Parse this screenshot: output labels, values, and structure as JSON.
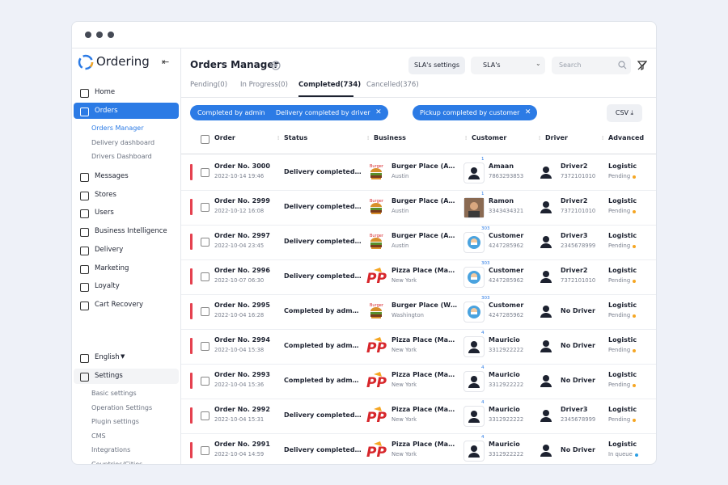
{
  "sidebar": {
    "brand": "Ordering",
    "top_items": [
      "Home",
      "Orders"
    ],
    "orders_sub": [
      "Orders Manager",
      "Delivery dashboard",
      "Drivers Dashboard"
    ],
    "items": [
      "Messages",
      "Stores",
      "Users",
      "Business Intelligence",
      "Delivery",
      "Marketing",
      "Loyalty",
      "Cart Recovery"
    ],
    "language": "English",
    "settings": "Settings",
    "settings_sub": [
      "Basic settings",
      "Operation Settings",
      "Plugin settings",
      "CMS",
      "Integrations",
      "Countries/Cities"
    ]
  },
  "header": {
    "title": "Orders Manager",
    "sla_settings": "SLA's settings",
    "sla_select": "SLA's",
    "search": "Search"
  },
  "tabs": [
    "Pending(0)",
    "In Progress(0)",
    "Completed(734)",
    "Cancelled(376)"
  ],
  "filters": [
    "Completed by admin",
    "Delivery completed by driver",
    "Pickup completed by customer"
  ],
  "csv": "CSV",
  "table": {
    "columns": [
      "Order",
      "Status",
      "Business",
      "Customer",
      "Driver",
      "Advanced"
    ],
    "rows": [
      [
        "Order No. 3000",
        "2022-10-14 19:46",
        "Delivery completed…",
        "Burger Place (A…",
        "Austin",
        "1",
        "Amaan",
        "7863293853",
        "Driver2",
        "7372101010",
        "Logistic",
        "Pending"
      ],
      [
        "Order No. 2999",
        "2022-10-12 16:08",
        "Delivery completed…",
        "Burger Place (A…",
        "Austin",
        "1",
        "Ramon",
        "3343434321",
        "Driver2",
        "7372101010",
        "Logistic",
        "Pending"
      ],
      [
        "Order No. 2997",
        "2022-10-04 23:45",
        "Delivery completed…",
        "Burger Place (A…",
        "Austin",
        "303",
        "Customer",
        "4247285962",
        "Driver3",
        "2345678999",
        "Logistic",
        "Pending"
      ],
      [
        "Order No. 2996",
        "2022-10-07 06:30",
        "Delivery completed…",
        "Pizza Place (Ma…",
        "New York",
        "303",
        "Customer",
        "4247285962",
        "Driver2",
        "7372101010",
        "Logistic",
        "Pending"
      ],
      [
        "Order No. 2995",
        "2022-10-04 16:28",
        "Completed by adm…",
        "Burger Place (W…",
        "Washington",
        "303",
        "Customer",
        "4247285962",
        "No Driver",
        null,
        "Logistic",
        "Pending"
      ],
      [
        "Order No. 2994",
        "2022-10-04 15:38",
        "Completed by adm…",
        "Pizza Place (Ma…",
        "New York",
        "4",
        "Mauricio",
        "3312922222",
        "No Driver",
        null,
        "Logistic",
        "Pending"
      ],
      [
        "Order No. 2993",
        "2022-10-04 15:36",
        "Completed by adm…",
        "Pizza Place (Ma…",
        "New York",
        "4",
        "Mauricio",
        "3312922222",
        "No Driver",
        null,
        "Logistic",
        "Pending"
      ],
      [
        "Order No. 2992",
        "2022-10-04 15:31",
        "Delivery completed…",
        "Pizza Place (Ma…",
        "New York",
        "4",
        "Mauricio",
        "3312922222",
        "Driver3",
        "2345678999",
        "Logistic",
        "Pending"
      ],
      [
        "Order No. 2991",
        "2022-10-04 14:59",
        "Delivery completed…",
        "Pizza Place (Ma…",
        "New York",
        "4",
        "Mauricio",
        "3312922222",
        "No Driver",
        null,
        "Logistic",
        "In queue"
      ]
    ]
  }
}
